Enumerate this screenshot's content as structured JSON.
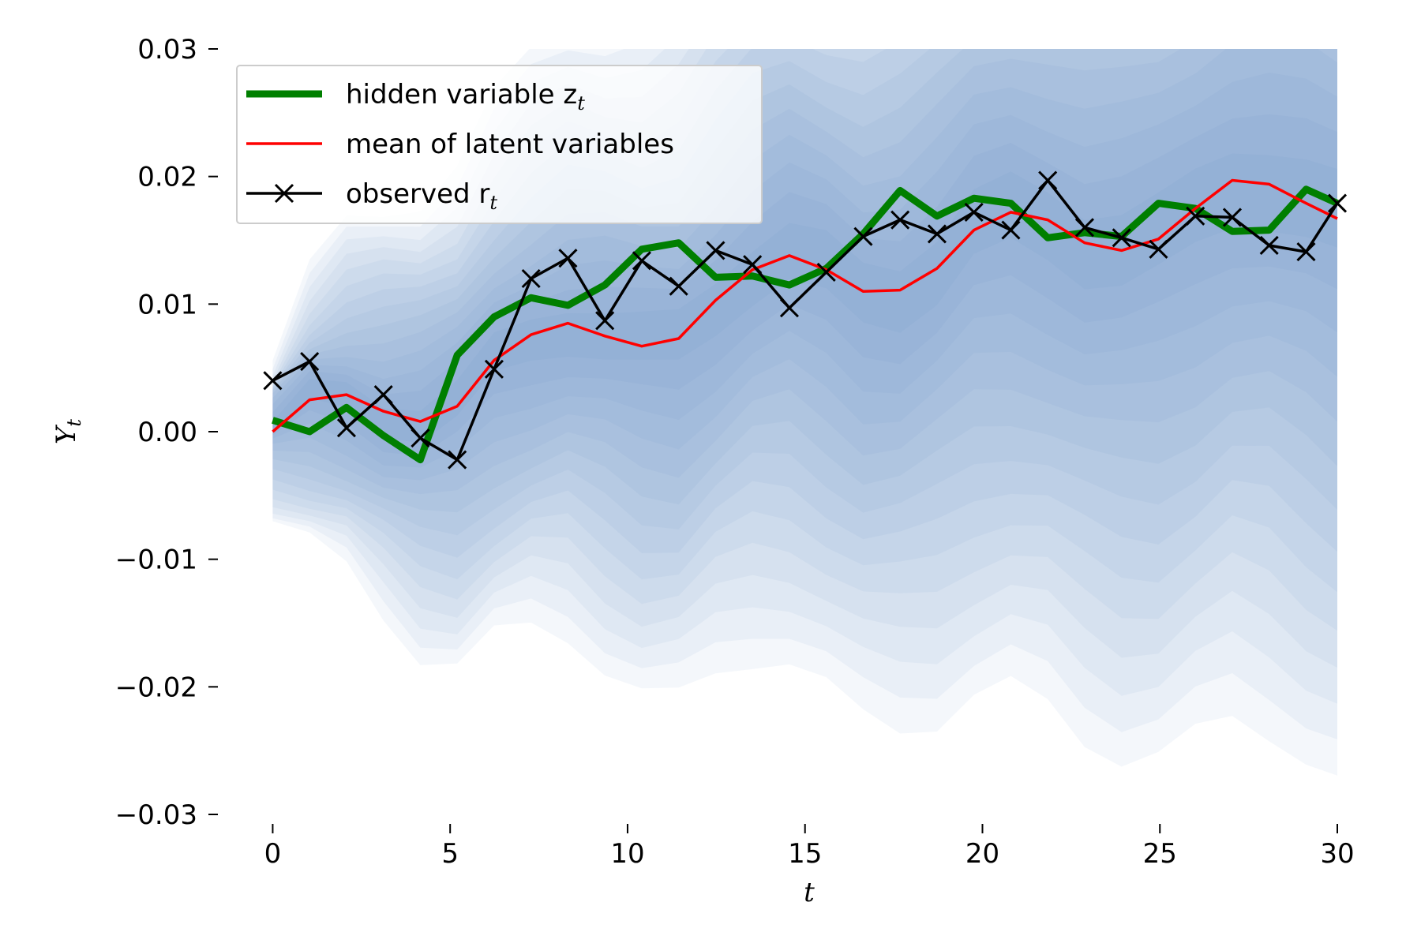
{
  "chart_data": {
    "type": "line",
    "xlabel": "t",
    "ylabel_main": "Y",
    "ylabel_sub": "t",
    "xlim": [
      -1.5,
      30.2
    ],
    "ylim": [
      -0.03,
      0.03
    ],
    "x_ticks": [
      0,
      5,
      10,
      15,
      20,
      25,
      30
    ],
    "y_ticks": [
      -0.03,
      -0.02,
      -0.01,
      0.0,
      0.01,
      0.02,
      0.03
    ],
    "y_tick_labels": [
      "−0.03",
      "−0.02",
      "−0.01",
      "0.00",
      "0.01",
      "0.02",
      "0.03"
    ],
    "grid": false,
    "legend_position": "upper-left",
    "band_color": "#5b8cc0",
    "series": [
      {
        "name": "hidden variable z",
        "name_sub": "t",
        "color": "#007f00",
        "style": "thick-line",
        "x": [
          0,
          1.04,
          2.08,
          3.12,
          4.16,
          5.2,
          6.24,
          7.28,
          8.32,
          9.36,
          10.4,
          11.44,
          12.48,
          13.52,
          14.56,
          15.6,
          16.64,
          17.68,
          18.72,
          19.76,
          20.8,
          21.84,
          22.88,
          23.92,
          24.96,
          26.0,
          27.04,
          28.08,
          29.12,
          30.0
        ],
        "values": [
          0.0009,
          0.0,
          0.0019,
          -0.0003,
          -0.0022,
          0.006,
          0.009,
          0.0105,
          0.0099,
          0.0115,
          0.0143,
          0.0148,
          0.0121,
          0.0122,
          0.0115,
          0.0128,
          0.0155,
          0.0189,
          0.0169,
          0.0183,
          0.0179,
          0.0152,
          0.0156,
          0.0153,
          0.0179,
          0.0175,
          0.0157,
          0.0158,
          0.019,
          0.0179
        ]
      },
      {
        "name": "mean of latent variables",
        "name_sub": "",
        "color": "#ff0000",
        "style": "line",
        "x": [
          0,
          1.04,
          2.08,
          3.12,
          4.16,
          5.2,
          6.24,
          7.28,
          8.32,
          9.36,
          10.4,
          11.44,
          12.48,
          13.52,
          14.56,
          15.6,
          16.64,
          17.68,
          18.72,
          19.76,
          20.8,
          21.84,
          22.88,
          23.92,
          24.96,
          26.0,
          27.04,
          28.08,
          29.12,
          30.0
        ],
        "values": [
          0.0,
          0.0025,
          0.0029,
          0.0016,
          0.0008,
          0.002,
          0.0056,
          0.0076,
          0.0085,
          0.0075,
          0.0067,
          0.0073,
          0.0103,
          0.0127,
          0.0138,
          0.0127,
          0.011,
          0.0111,
          0.0128,
          0.0158,
          0.0172,
          0.0166,
          0.0148,
          0.0142,
          0.0151,
          0.0175,
          0.0197,
          0.0194,
          0.0179,
          0.0167
        ]
      },
      {
        "name": "observed r",
        "name_sub": "t",
        "color": "#000000",
        "style": "line-x-markers",
        "x": [
          0,
          1.04,
          2.08,
          3.12,
          4.16,
          5.2,
          6.24,
          7.28,
          8.32,
          9.36,
          10.4,
          11.44,
          12.48,
          13.52,
          14.56,
          15.6,
          16.64,
          17.68,
          18.72,
          19.76,
          20.8,
          21.84,
          22.88,
          23.92,
          24.96,
          26.0,
          27.04,
          28.08,
          29.12,
          30.0
        ],
        "values": [
          0.004,
          0.0055,
          0.0003,
          0.0029,
          -0.0005,
          -0.0022,
          0.0049,
          0.012,
          0.0136,
          0.0087,
          0.0134,
          0.0114,
          0.0142,
          0.0131,
          0.0097,
          0.0125,
          0.0153,
          0.0166,
          0.0155,
          0.0172,
          0.0158,
          0.0197,
          0.016,
          0.0152,
          0.0143,
          0.0169,
          0.0168,
          0.0146,
          0.0141,
          0.0179
        ]
      }
    ]
  }
}
